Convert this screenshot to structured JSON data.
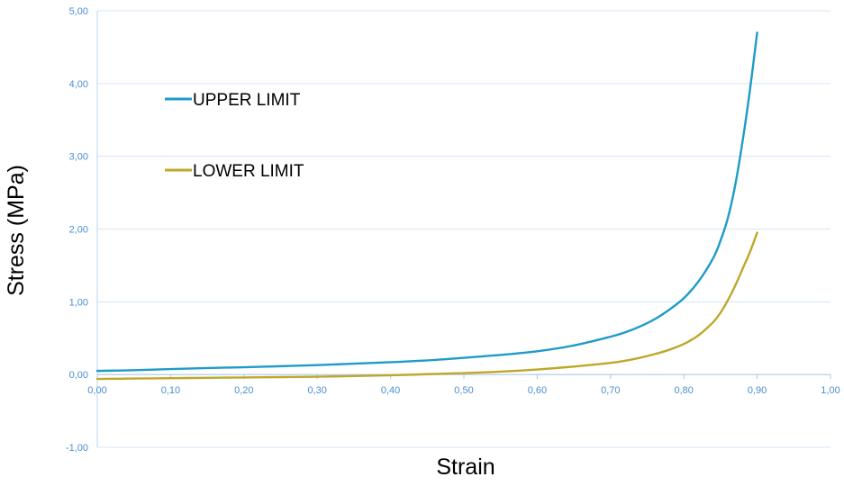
{
  "chart_data": {
    "type": "line",
    "title": "",
    "xlabel": "Strain",
    "ylabel": "Stress (MPa)",
    "xlim": [
      0,
      1
    ],
    "ylim": [
      -1,
      5
    ],
    "x_ticks": [
      0,
      0.1,
      0.2,
      0.3,
      0.4,
      0.5,
      0.6,
      0.7,
      0.8,
      0.9,
      1.0
    ],
    "x_tick_labels": [
      "0,00",
      "0,10",
      "0,20",
      "0,30",
      "0,40",
      "0,50",
      "0,60",
      "0,70",
      "0,80",
      "0,90",
      "1,00"
    ],
    "y_ticks": [
      -1,
      0,
      1,
      2,
      3,
      4,
      5
    ],
    "y_tick_labels": [
      "-1,00",
      "0,00",
      "1,00",
      "2,00",
      "3,00",
      "4,00",
      "5,00"
    ],
    "grid": "horizontal",
    "legend_position": "top-left",
    "series": [
      {
        "name": "UPPER LIMIT",
        "color": "#1e9bc8",
        "x": [
          0,
          0.05,
          0.1,
          0.15,
          0.2,
          0.25,
          0.3,
          0.35,
          0.4,
          0.45,
          0.5,
          0.55,
          0.6,
          0.65,
          0.7,
          0.72,
          0.74,
          0.76,
          0.78,
          0.8,
          0.82,
          0.84,
          0.85,
          0.86,
          0.87,
          0.88,
          0.89,
          0.9
        ],
        "values": [
          0.05,
          0.06,
          0.075,
          0.09,
          0.1,
          0.115,
          0.13,
          0.15,
          0.17,
          0.195,
          0.23,
          0.27,
          0.32,
          0.4,
          0.52,
          0.58,
          0.66,
          0.76,
          0.89,
          1.05,
          1.28,
          1.6,
          1.84,
          2.15,
          2.6,
          3.2,
          3.9,
          4.7
        ]
      },
      {
        "name": "LOWER LIMIT",
        "color": "#bfa72a",
        "x": [
          0,
          0.05,
          0.1,
          0.15,
          0.2,
          0.25,
          0.3,
          0.35,
          0.4,
          0.45,
          0.5,
          0.55,
          0.6,
          0.65,
          0.7,
          0.72,
          0.74,
          0.76,
          0.78,
          0.8,
          0.82,
          0.84,
          0.85,
          0.86,
          0.87,
          0.88,
          0.89,
          0.9
        ],
        "values": [
          -0.06,
          -0.055,
          -0.05,
          -0.045,
          -0.04,
          -0.035,
          -0.03,
          -0.02,
          -0.01,
          0.005,
          0.02,
          0.04,
          0.07,
          0.11,
          0.16,
          0.19,
          0.23,
          0.28,
          0.34,
          0.42,
          0.54,
          0.72,
          0.85,
          1.02,
          1.22,
          1.45,
          1.68,
          1.95
        ]
      }
    ]
  }
}
